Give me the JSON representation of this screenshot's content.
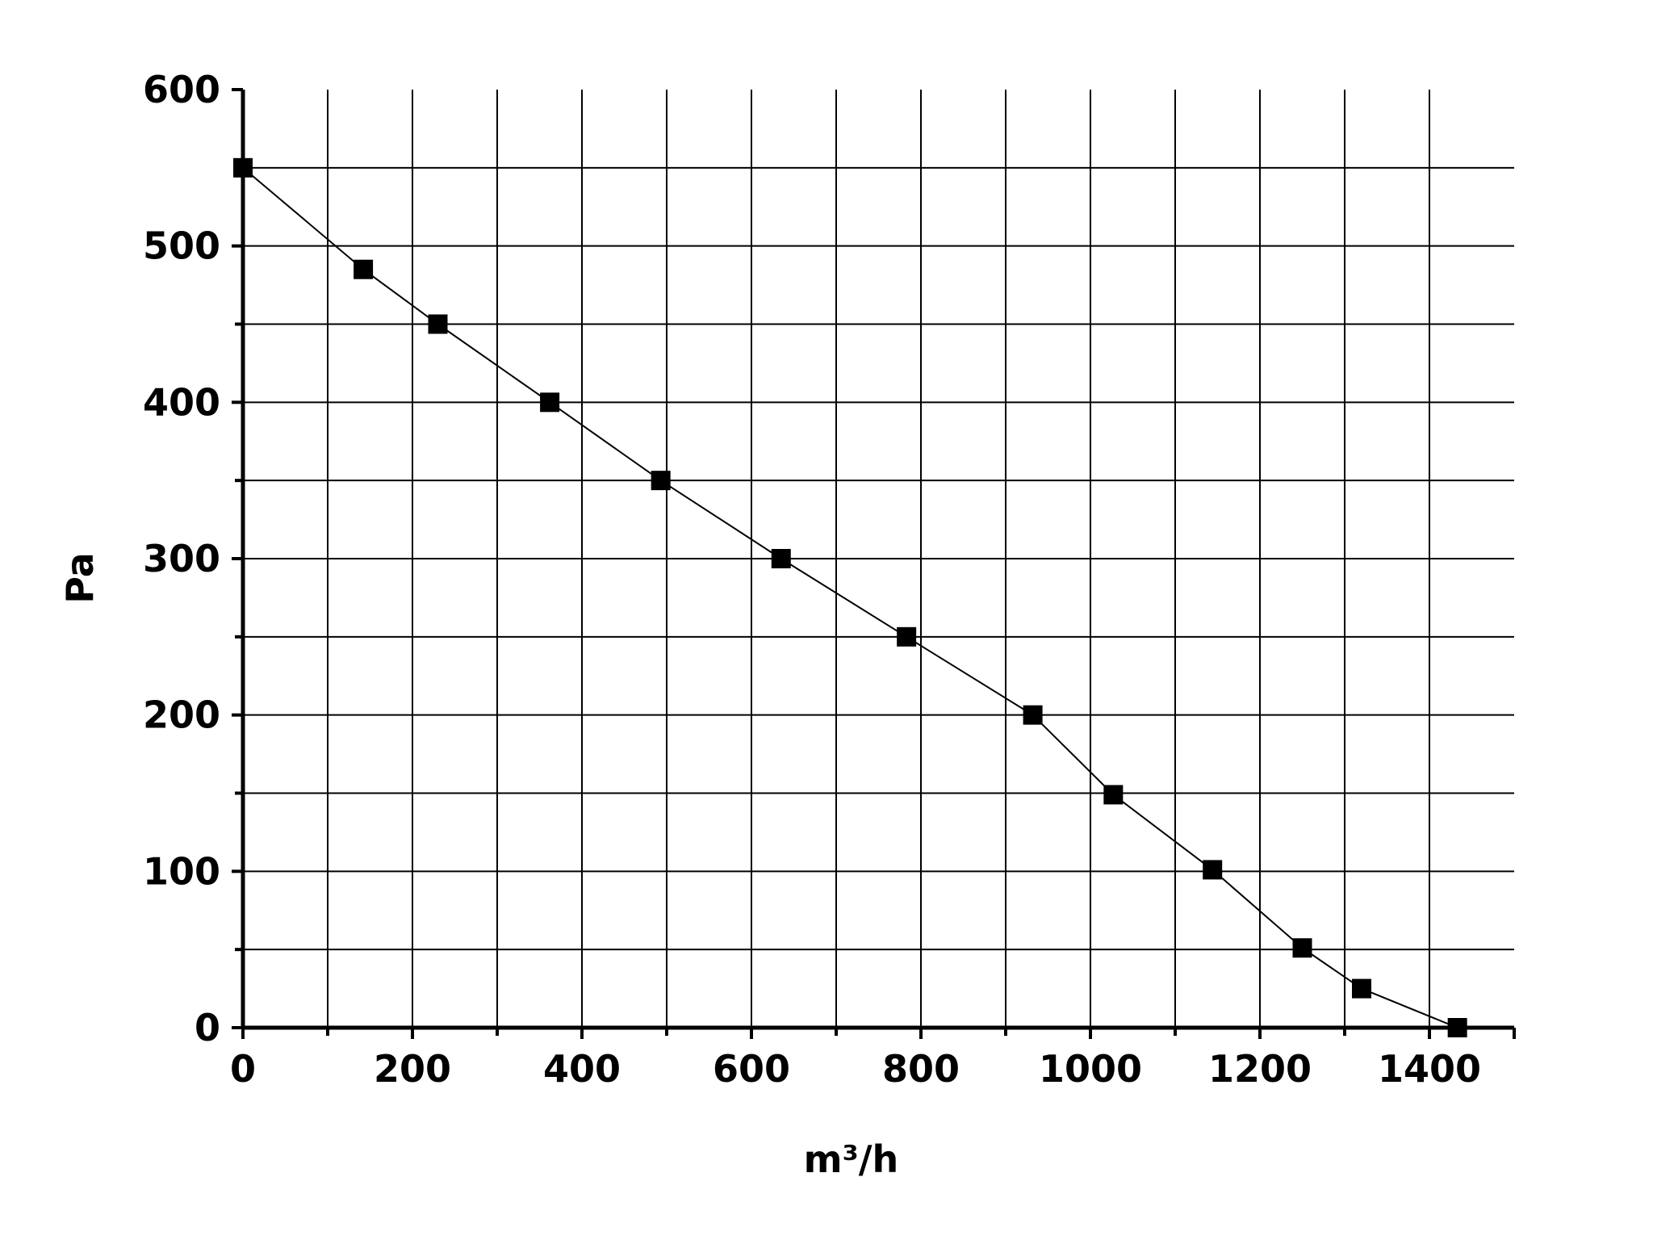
{
  "chart_data": {
    "type": "line",
    "title": "",
    "xlabel": "m³/h",
    "ylabel": "Pa",
    "xlim": [
      0,
      1500
    ],
    "ylim": [
      0,
      600
    ],
    "x_ticks": [
      0,
      200,
      400,
      600,
      800,
      1000,
      1200,
      1400
    ],
    "y_ticks": [
      0,
      100,
      200,
      300,
      400,
      500,
      600
    ],
    "grid": true,
    "marker": "square",
    "series": [
      {
        "x": [
          0,
          142,
          230,
          362,
          493,
          635,
          783,
          932,
          1027,
          1144,
          1250,
          1320,
          1433
        ],
        "y": [
          550,
          485,
          450,
          400,
          350,
          300,
          250,
          200,
          149,
          101,
          51,
          25,
          0
        ]
      }
    ]
  }
}
